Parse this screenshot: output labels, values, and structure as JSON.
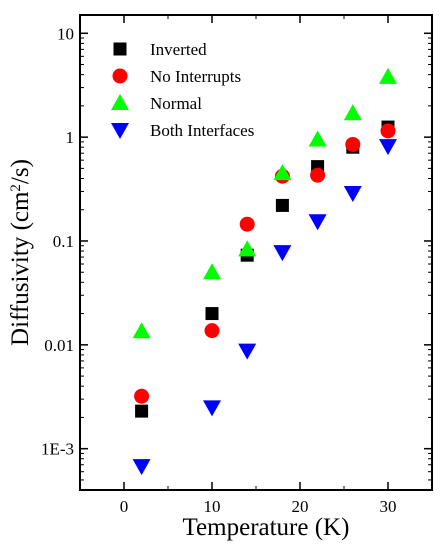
{
  "chart_data": {
    "type": "scatter",
    "xlabel": "Temperature (K)",
    "ylabel_main": "Diffusivity (cm",
    "ylabel_sup": "2",
    "ylabel_tail": "/s)",
    "xlim": [
      -5,
      35
    ],
    "ylim": [
      0.0004,
      15
    ],
    "yscale": "log",
    "x_ticks": [
      0,
      10,
      20,
      30
    ],
    "x_tick_labels": [
      "0",
      "10",
      "20",
      "30"
    ],
    "y_ticks": [
      0.001,
      0.01,
      0.1,
      1,
      10
    ],
    "y_tick_labels": [
      "1E-3",
      "0.01",
      "0.1",
      "1",
      "10"
    ],
    "legend_position": "top-left",
    "series": [
      {
        "name": "Inverted",
        "marker": "square",
        "color": "#000000",
        "x": [
          2,
          10,
          14,
          18,
          22,
          26,
          30
        ],
        "y": [
          0.0023,
          0.02,
          0.073,
          0.22,
          0.52,
          0.8,
          1.25
        ]
      },
      {
        "name": "No Interrupts",
        "marker": "circle",
        "color": "#ff0000",
        "x": [
          2,
          10,
          14,
          18,
          22,
          26,
          30
        ],
        "y": [
          0.0032,
          0.0137,
          0.145,
          0.42,
          0.43,
          0.85,
          1.15
        ]
      },
      {
        "name": "Normal",
        "marker": "triangle-up",
        "color": "#00ff00",
        "x": [
          2,
          10,
          14,
          18,
          22,
          26,
          30
        ],
        "y": [
          0.0135,
          0.05,
          0.083,
          0.45,
          0.95,
          1.7,
          3.8
        ]
      },
      {
        "name": "Both Interfaces",
        "marker": "triangle-down",
        "color": "#0000ff",
        "x": [
          2,
          10,
          14,
          18,
          22,
          26,
          30
        ],
        "y": [
          0.00068,
          0.0025,
          0.0088,
          0.078,
          0.155,
          0.29,
          0.82
        ]
      }
    ]
  }
}
